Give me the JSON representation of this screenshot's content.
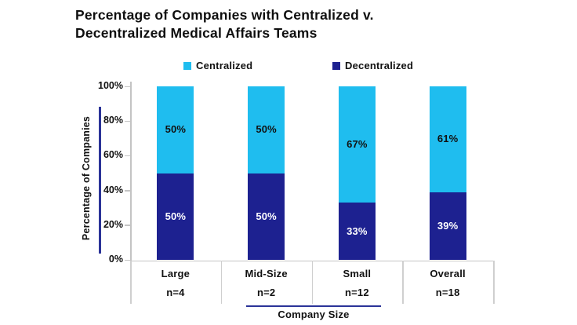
{
  "title": "Percentage of Companies with Centralized v.\nDecentralized Medical Affairs Teams",
  "legend": [
    {
      "label": "Centralized",
      "color": "#1fbdef"
    },
    {
      "label": "Decentralized",
      "color": "#1d2190"
    }
  ],
  "colors": {
    "centralized": "#1fbdef",
    "decentralized": "#1d2190",
    "accent_line": "#2b3398",
    "axis_gray": "#c4c4c4",
    "text": "#111111"
  },
  "chart_data": {
    "type": "bar",
    "stacked": true,
    "title": "Percentage of Companies with Centralized v. Decentralized Medical Affairs Teams",
    "categories": [
      "Large",
      "Mid-Size",
      "Small",
      "Overall"
    ],
    "category_counts": [
      "n=4",
      "n=2",
      "n=12",
      "n=18"
    ],
    "series": [
      {
        "name": "Decentralized",
        "color": "#1d2190",
        "values": [
          50,
          50,
          33,
          39
        ],
        "labels": [
          "50%",
          "50%",
          "33%",
          "39%"
        ],
        "label_color": "#ffffff"
      },
      {
        "name": "Centralized",
        "color": "#1fbdef",
        "values": [
          50,
          50,
          67,
          61
        ],
        "labels": [
          "50%",
          "50%",
          "67%",
          "61%"
        ],
        "label_color": "#111111"
      }
    ],
    "xlabel": "Company Size",
    "ylabel": "Percentage of Companies",
    "ylim": [
      0,
      100
    ],
    "y_ticks": [
      {
        "value": 0,
        "label": "0%"
      },
      {
        "value": 20,
        "label": "20%"
      },
      {
        "value": 40,
        "label": "40%"
      },
      {
        "value": 60,
        "label": "60%"
      },
      {
        "value": 80,
        "label": "80%"
      },
      {
        "value": 100,
        "label": "100%"
      }
    ],
    "grid": false,
    "legend_position": "top"
  }
}
